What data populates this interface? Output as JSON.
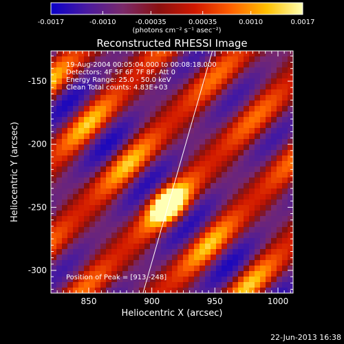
{
  "colorbar": {
    "tick_labels": [
      "-0.0017",
      "-0.0010",
      "-0.00035",
      "0.00035",
      "0.0010",
      "0.0017"
    ],
    "units_label": "(photons cm⁻² s⁻¹ asec⁻²)",
    "range": [
      -0.0017,
      0.0017
    ],
    "colors": [
      "#0a00c8",
      "#4a1aa0",
      "#7a2a6a",
      "#8a1010",
      "#d01800",
      "#ff6000",
      "#ffc000",
      "#ffffb0"
    ]
  },
  "footer": {
    "date": "22-Jun-2013 16:38"
  },
  "chart_data": {
    "type": "heatmap",
    "title": "Reconstructed RHESSI Image",
    "xlabel": "Heliocentric X (arcsec)",
    "ylabel": "Heliocentric Y (arcsec)",
    "xlim": [
      820,
      1012
    ],
    "ylim": [
      -318,
      -126
    ],
    "x_ticks": [
      "850",
      "900",
      "950",
      "1000"
    ],
    "y_ticks": [
      "-150",
      "-200",
      "-250",
      "-300"
    ],
    "x_tick_values": [
      850,
      900,
      950,
      1000
    ],
    "y_tick_values": [
      -150,
      -200,
      -250,
      -300
    ],
    "annotations": [
      "19-Aug-2004 00:05:04.000 to 00:08:18.000",
      "Detectors: 4F 5F 6F 7F 8F, Att 0",
      "Energy Range: 25.0 - 50.0 keV",
      "Clean     Total counts: 4.83E+03"
    ],
    "peak_label": "Position of Peak = [913,-248]",
    "peak": [
      913,
      -248
    ],
    "limb_line": {
      "x1": 893,
      "y1": -318,
      "x2": 948,
      "y2": -126
    }
  }
}
